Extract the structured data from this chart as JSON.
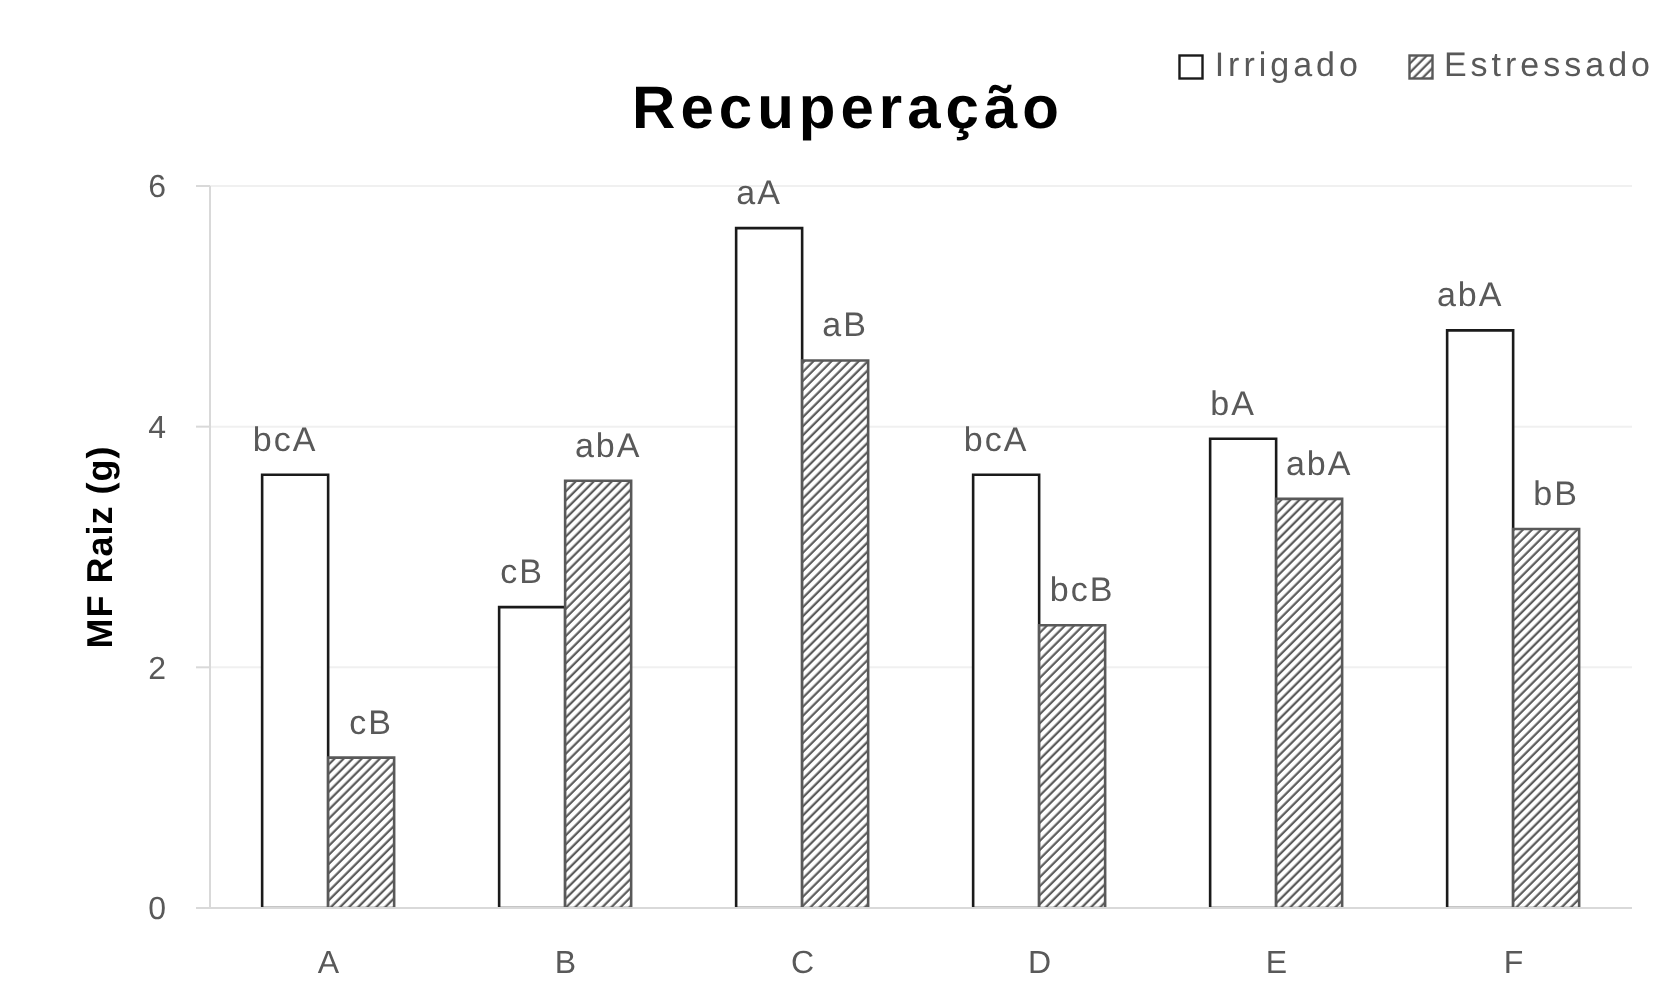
{
  "chart_data": {
    "type": "bar",
    "title": "Recuperação",
    "ylabel": "MF Raiz (g)",
    "categories": [
      "A",
      "B",
      "C",
      "D",
      "E",
      "F"
    ],
    "series": [
      {
        "name": "Irrigado",
        "color": "#ffffff",
        "values": [
          3.6,
          2.5,
          5.65,
          3.6,
          3.9,
          4.8
        ],
        "value_labels": [
          "bcA",
          "cB",
          "aA",
          "bcA",
          "bA",
          "abA"
        ]
      },
      {
        "name": "Estressado",
        "color": "#595959",
        "values": [
          1.25,
          3.55,
          4.55,
          2.35,
          3.4,
          3.15
        ],
        "value_labels": [
          "cB",
          "abA",
          "aB",
          "bcB",
          "abA",
          "bB"
        ]
      }
    ],
    "ylim": [
      0,
      6
    ],
    "yticks": [
      0,
      2,
      4,
      6
    ],
    "grid": "y",
    "legend": "top right"
  }
}
